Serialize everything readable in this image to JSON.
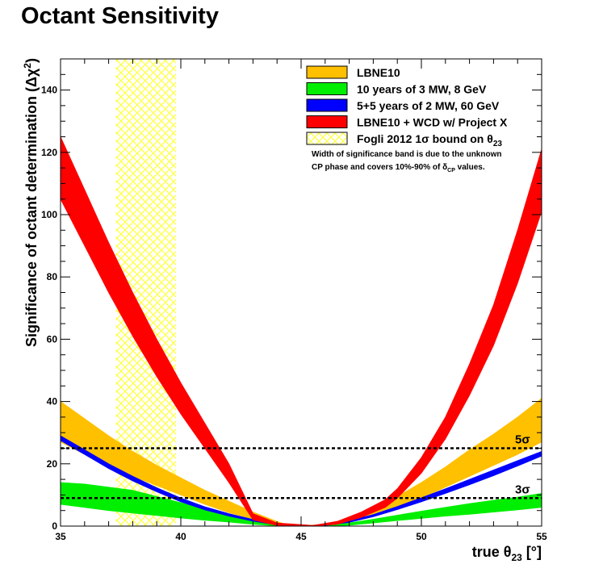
{
  "title": "Octant Sensitivity",
  "colors": {
    "lbne10": "#ffc000",
    "p3mw": "#00ee00",
    "p2mw": "#0000ff",
    "wcd": "#ff0000",
    "fogli": "#ffff66"
  },
  "legend": {
    "entries": [
      {
        "key": "lbne10",
        "label": "LBNE10"
      },
      {
        "key": "p3mw",
        "label": "10 years of 3 MW, 8 GeV"
      },
      {
        "key": "p2mw",
        "label": "5+5 years of 2 MW, 60 GeV"
      },
      {
        "key": "wcd",
        "label": "LBNE10 + WCD w/ Project X"
      },
      {
        "key": "fogli",
        "label": "Fogli 2012 1σ bound on θ",
        "sub": "23"
      }
    ],
    "note_line1": "Width of significance band is due to the unknown",
    "note_line2_pre": "CP phase and covers 10%-90% of δ",
    "note_line2_sub": "CP",
    "note_line2_post": " values."
  },
  "chart_data": {
    "type": "area",
    "title": "Octant Sensitivity",
    "xlabel": "true θ23 [°]",
    "ylabel": "Significance of octant determination (Δχ²)",
    "xlim": [
      35,
      55
    ],
    "ylim": [
      0,
      150
    ],
    "x_ticks": [
      35,
      40,
      45,
      50,
      55
    ],
    "y_ticks": [
      0,
      20,
      40,
      60,
      80,
      100,
      120,
      140
    ],
    "series": [
      {
        "key": "lbne10",
        "name": "LBNE10",
        "x": [
          35,
          36,
          37,
          38,
          39,
          40,
          41,
          42,
          43,
          44,
          44.5,
          45.3,
          46,
          47,
          48,
          49,
          50,
          51,
          52,
          53,
          54,
          55
        ],
        "upper": [
          40,
          34.5,
          29,
          24,
          19.5,
          15.5,
          11.5,
          8,
          4.5,
          1.5,
          0.2,
          0.2,
          0.6,
          2.5,
          5.5,
          9.5,
          14,
          19,
          24.5,
          29.5,
          35,
          41
        ],
        "lower": [
          27,
          23,
          19.5,
          16,
          13,
          10,
          7,
          4.3,
          2.2,
          0.5,
          0,
          0,
          0.3,
          1.2,
          3.3,
          6,
          9,
          12.5,
          16,
          19.5,
          23,
          27
        ]
      },
      {
        "key": "p3mw",
        "name": "10 years of 3 MW, 8 GeV",
        "x": [
          35,
          36,
          37,
          38,
          39,
          40,
          41,
          42,
          43,
          44,
          44.5,
          45.3,
          46,
          47,
          48,
          49,
          50,
          51,
          52,
          53,
          54,
          55
        ],
        "upper": [
          14,
          13.5,
          12.5,
          11.5,
          9.5,
          7.5,
          5.5,
          3.8,
          2.2,
          0.8,
          0.2,
          0.1,
          0.3,
          1,
          2.2,
          3.5,
          4.8,
          6,
          7.2,
          8.3,
          9.3,
          10.5
        ],
        "lower": [
          7,
          6,
          5,
          4.2,
          3.4,
          2.6,
          1.9,
          1.3,
          0.6,
          0.1,
          0,
          0,
          0,
          0.3,
          1,
          1.8,
          2.5,
          3.2,
          3.8,
          4.5,
          5.2,
          6
        ]
      },
      {
        "key": "p2mw",
        "name": "5+5 years of 2 MW, 60 GeV",
        "x": [
          35,
          36,
          37,
          38,
          39,
          40,
          41,
          42,
          43,
          44,
          44.5,
          45.3,
          46,
          47,
          48,
          49,
          50,
          51,
          52,
          53,
          54,
          55
        ],
        "upper": [
          29,
          24.5,
          20,
          16,
          12.3,
          9,
          6.2,
          4,
          2.1,
          0.7,
          0.1,
          0.1,
          0.4,
          1.7,
          3.7,
          6.3,
          9.1,
          12,
          15,
          18,
          21,
          24
        ],
        "lower": [
          27.5,
          23,
          18.5,
          14.5,
          11,
          7.8,
          5.2,
          3.2,
          1.6,
          0.4,
          0,
          0,
          0.2,
          1.2,
          3,
          5.3,
          7.8,
          10.5,
          13.3,
          16.2,
          19.3,
          22.5
        ]
      },
      {
        "key": "wcd",
        "name": "LBNE10 + WCD w/ Project X",
        "x": [
          35,
          36,
          37,
          38,
          39,
          40,
          41,
          42,
          42.5,
          43,
          44,
          45.5,
          46.5,
          47.5,
          48.5,
          49,
          50,
          51,
          52,
          53,
          54,
          55
        ],
        "upper": [
          125,
          108,
          91,
          75,
          60,
          46,
          33,
          20,
          12,
          4,
          1,
          0.2,
          1.5,
          4.5,
          8.5,
          12,
          22,
          35,
          52,
          71,
          95,
          121
        ],
        "lower": [
          105,
          90,
          75,
          61,
          48,
          36,
          25,
          14,
          8,
          2,
          0.2,
          0,
          0.6,
          2.8,
          6,
          9,
          17,
          28,
          42,
          58,
          78,
          101
        ]
      }
    ],
    "fogli_band": {
      "name": "Fogli 2012 1σ bound on θ23",
      "x_from": 37.3,
      "x_to": 39.8
    },
    "reference_lines": [
      {
        "label": "5σ",
        "y": 25
      },
      {
        "label": "3σ",
        "y": 9
      }
    ]
  }
}
